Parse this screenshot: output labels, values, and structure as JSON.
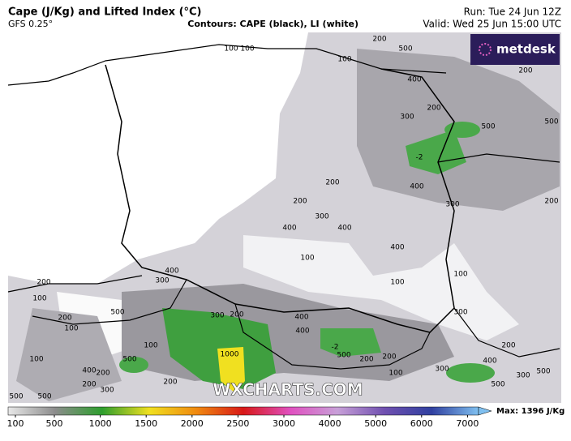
{
  "header": {
    "title": "Cape (J/Kg) and Lifted Index (°C)",
    "model": "GFS 0.25°",
    "contours": "Contours: CAPE (black), LI (white)",
    "run": "Run: Tue 24 Jun 12Z",
    "valid": "Valid: Wed 25 Jun 15:00 UTC"
  },
  "logo": "metdesk",
  "watermark": "WXCHARTS.COM",
  "contour_labels": [
    "100",
    "100",
    "100",
    "200",
    "500",
    "400",
    "200",
    "300",
    "500",
    "-2",
    "400",
    "200",
    "200",
    "300",
    "200",
    "300",
    "400",
    "400",
    "400",
    "100",
    "400",
    "300",
    "200",
    "100",
    "100",
    "100",
    "500",
    "300",
    "200",
    "400",
    "200",
    "300",
    "400",
    "100",
    "100",
    "-2",
    "200",
    "100",
    "500",
    "1000",
    "500",
    "200",
    "200",
    "400",
    "400",
    "200",
    "300",
    "300",
    "200",
    "100",
    "500",
    "500",
    "200",
    "300",
    "500",
    "500",
    "500",
    "200"
  ],
  "colorbar": {
    "ticks": [
      100,
      500,
      1000,
      1500,
      2000,
      2500,
      3000,
      4000,
      5000,
      6000,
      7000
    ],
    "colors": [
      "#e8e8e8",
      "#8c8c8c",
      "#2e9e2e",
      "#f0e020",
      "#f08a10",
      "#d81818",
      "#e050c0",
      "#c8a0d8",
      "#7050b0",
      "#3040a0",
      "#80c0f0"
    ],
    "max_label": "Max: 1396 J/Kg"
  }
}
